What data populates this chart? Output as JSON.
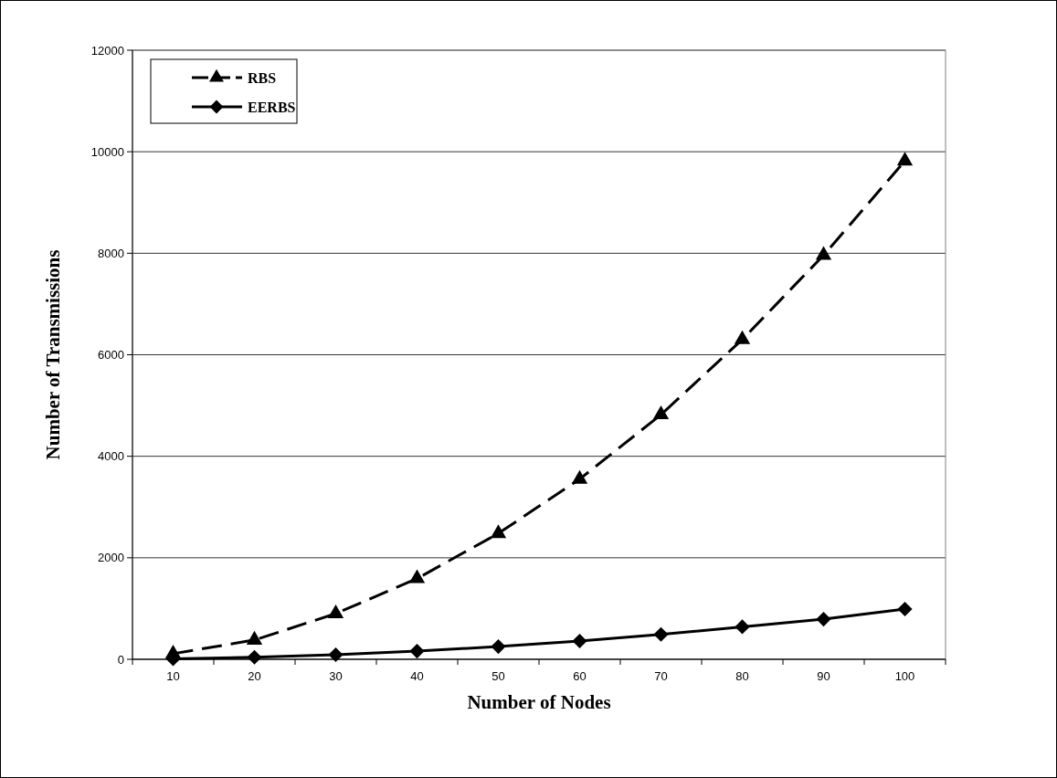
{
  "chart_data": {
    "type": "line",
    "xlabel": "Number of Nodes",
    "ylabel": "Number of Transmissions",
    "categories": [
      "10",
      "20",
      "30",
      "40",
      "50",
      "60",
      "70",
      "80",
      "90",
      "100"
    ],
    "series": [
      {
        "name": "RBS",
        "color": "#000000",
        "marker": "triangle",
        "line_style": "dashed",
        "values": [
          110,
          380,
          900,
          1590,
          2480,
          3550,
          4820,
          6300,
          7960,
          9820
        ]
      },
      {
        "name": "EERBS",
        "color": "#000000",
        "marker": "diamond",
        "line_style": "solid",
        "values": [
          10,
          40,
          90,
          160,
          250,
          360,
          490,
          640,
          790,
          990
        ]
      }
    ],
    "ylim": [
      0,
      12000
    ],
    "yticks": [
      0,
      2000,
      4000,
      6000,
      8000,
      10000,
      12000
    ],
    "grid": "y",
    "legend": "top left"
  }
}
